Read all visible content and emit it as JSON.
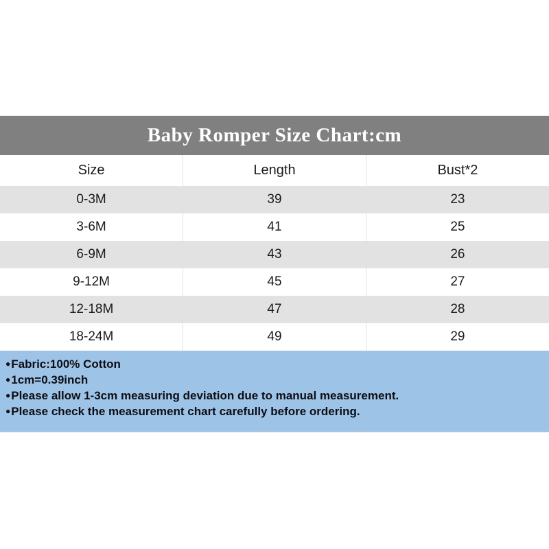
{
  "chart_data": {
    "type": "table",
    "title": "Baby Romper Size Chart:cm",
    "columns": [
      "Size",
      "Length",
      "Bust*2"
    ],
    "rows": [
      [
        "0-3M",
        "39",
        "23"
      ],
      [
        "3-6M",
        "41",
        "25"
      ],
      [
        "6-9M",
        "43",
        "26"
      ],
      [
        "9-12M",
        "45",
        "27"
      ],
      [
        "12-18M",
        "47",
        "28"
      ],
      [
        "18-24M",
        "49",
        "29"
      ]
    ],
    "units": "cm",
    "layout_hints": {
      "alternating_rows": true,
      "first_data_row_shaded": true
    }
  },
  "notes": {
    "bullet": "●",
    "items": [
      "Fabric:100% Cotton",
      "1cm=0.39inch",
      "Please allow 1-3cm measuring deviation due to manual measurement.",
      "Please check the measurement chart carefully before ordering."
    ]
  },
  "colors": {
    "title_bar": "#808080",
    "title_text": "#ffffff",
    "alt_row": "#e2e2e2",
    "notes_background": "#9dc3e6",
    "body_text": "#1a1a1a"
  }
}
